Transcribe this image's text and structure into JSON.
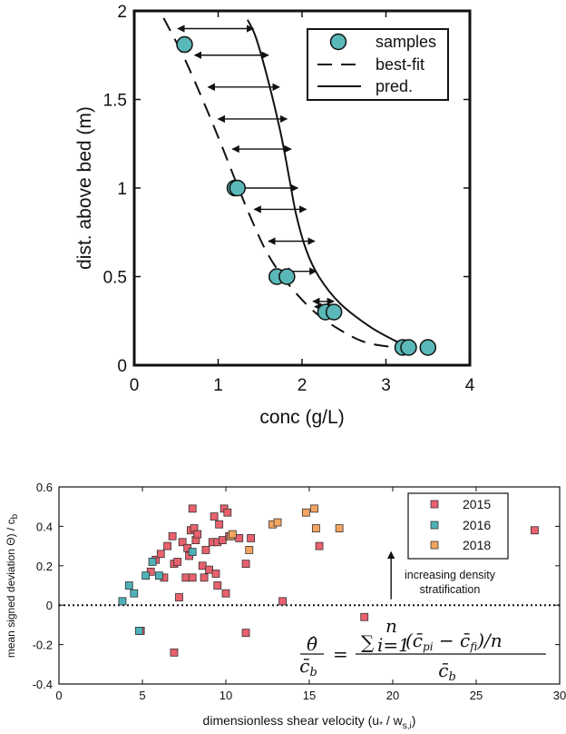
{
  "chart_data": [
    {
      "type": "scatter",
      "xlabel": "conc (g/L)",
      "ylabel": "dist. above bed (m)",
      "xlim": [
        0,
        4
      ],
      "ylim": [
        0,
        2
      ],
      "x_ticks": [
        "0",
        "1",
        "2",
        "3",
        "4"
      ],
      "y_ticks": [
        "0",
        "0.5",
        "1",
        "1.5",
        "2"
      ],
      "grid": false,
      "legend_position": "top-right",
      "legend": [
        "samples",
        "best-fit",
        "pred."
      ],
      "colors": {
        "samples": "#5ab8b8",
        "line": "#000000"
      },
      "series": [
        {
          "name": "samples",
          "points": [
            [
              0.6,
              1.81
            ],
            [
              1.2,
              1.0
            ],
            [
              1.23,
              1.0
            ],
            [
              1.7,
              0.5
            ],
            [
              1.82,
              0.5
            ],
            [
              2.28,
              0.3
            ],
            [
              2.38,
              0.3
            ],
            [
              3.2,
              0.1
            ],
            [
              3.27,
              0.1
            ],
            [
              3.5,
              0.1
            ]
          ]
        },
        {
          "name": "best-fit",
          "style": "dashed",
          "points": [
            [
              0.35,
              1.96
            ],
            [
              0.6,
              1.73
            ],
            [
              0.85,
              1.46
            ],
            [
              1.05,
              1.23
            ],
            [
              1.2,
              1.05
            ],
            [
              1.4,
              0.82
            ],
            [
              1.6,
              0.62
            ],
            [
              1.85,
              0.45
            ],
            [
              2.15,
              0.3
            ],
            [
              2.45,
              0.2
            ],
            [
              2.75,
              0.13
            ],
            [
              3.1,
              0.1
            ]
          ]
        },
        {
          "name": "pred.",
          "style": "solid",
          "points": [
            [
              1.35,
              1.95
            ],
            [
              1.45,
              1.85
            ],
            [
              1.6,
              1.6
            ],
            [
              1.75,
              1.3
            ],
            [
              1.85,
              1.05
            ],
            [
              1.93,
              0.85
            ],
            [
              2.05,
              0.65
            ],
            [
              2.2,
              0.5
            ],
            [
              2.45,
              0.35
            ],
            [
              2.8,
              0.22
            ],
            [
              3.1,
              0.14
            ],
            [
              3.3,
              0.1
            ]
          ]
        }
      ],
      "arrows": [
        {
          "y": 1.9,
          "x_from": 0.52,
          "x_to": 1.42
        },
        {
          "y": 1.75,
          "x_from": 0.72,
          "x_to": 1.6
        },
        {
          "y": 1.57,
          "x_from": 0.88,
          "x_to": 1.73
        },
        {
          "y": 1.39,
          "x_from": 1.0,
          "x_to": 1.82
        },
        {
          "y": 1.22,
          "x_from": 1.17,
          "x_to": 1.87
        },
        {
          "y": 1.0,
          "x_from": 1.22,
          "x_to": 1.95
        },
        {
          "y": 0.88,
          "x_from": 1.43,
          "x_to": 2.05
        },
        {
          "y": 0.7,
          "x_from": 1.6,
          "x_to": 2.15
        },
        {
          "y": 0.53,
          "x_from": 1.77,
          "x_to": 2.17
        },
        {
          "y": 0.36,
          "x_from": 2.13,
          "x_to": 2.38
        },
        {
          "y": 0.33,
          "x_from": 2.15,
          "x_to": 2.38
        }
      ]
    },
    {
      "type": "scatter",
      "xlabel": "dimensionless shear velocity (u",
      "xlabel_star": "*",
      "xlabel_mid": " / w",
      "xlabel_sub": "s,i",
      "xlabel_end": ")",
      "ylabel": "mean signed deviation  Θ) / c",
      "ylabel_sub": "b",
      "xlim": [
        0,
        30
      ],
      "ylim": [
        -0.4,
        0.6
      ],
      "x_ticks": [
        "0",
        "5",
        "10",
        "15",
        "20",
        "25",
        "30"
      ],
      "y_ticks": [
        "-0.4",
        "-0.2",
        "0",
        "0.2",
        "0.4",
        "0.6"
      ],
      "grid": false,
      "legend_position": "top-right",
      "legend": [
        "2015",
        "2016",
        "2018"
      ],
      "reference_line": {
        "y": 0,
        "style": "dotted"
      },
      "annotation": {
        "lines": [
          "increasing density",
          "stratification"
        ],
        "arrow_x": 19.9,
        "arrow_from_y": 0.03,
        "arrow_to_y": 0.27
      },
      "equation": {
        "lhs_top": "θ̂",
        "lhs_bottom": "c̄",
        "lhs_bottom_sub": "b",
        "equals": "=",
        "sum": "∑",
        "sum_top": "n",
        "sum_bottom": "i=1",
        "term_open": "(c̄",
        "term_sub1": "pi",
        "term_minus": " − c̄",
        "term_sub2": "fi",
        "term_close": ")/n",
        "rhs_bottom": "c̄",
        "rhs_bottom_sub": "b"
      },
      "series": [
        {
          "name": "2015",
          "color": "#e8616d",
          "points": [
            [
              5.5,
              0.17
            ],
            [
              5.8,
              0.23
            ],
            [
              6.1,
              0.26
            ],
            [
              6.3,
              0.14
            ],
            [
              6.5,
              0.3
            ],
            [
              6.8,
              0.35
            ],
            [
              6.9,
              0.21
            ],
            [
              7.1,
              0.22
            ],
            [
              7.2,
              0.04
            ],
            [
              7.4,
              0.32
            ],
            [
              7.6,
              0.14
            ],
            [
              7.7,
              0.29
            ],
            [
              7.8,
              0.25
            ],
            [
              7.9,
              0.38
            ],
            [
              8.0,
              0.49
            ],
            [
              8.0,
              0.14
            ],
            [
              8.1,
              0.39
            ],
            [
              8.2,
              0.33
            ],
            [
              8.3,
              0.36
            ],
            [
              8.6,
              0.2
            ],
            [
              8.7,
              0.14
            ],
            [
              8.8,
              0.28
            ],
            [
              9.0,
              0.18
            ],
            [
              9.2,
              0.32
            ],
            [
              9.3,
              0.45
            ],
            [
              9.4,
              0.16
            ],
            [
              9.5,
              0.32
            ],
            [
              9.6,
              0.41
            ],
            [
              9.8,
              0.33
            ],
            [
              9.9,
              0.49
            ],
            [
              10.1,
              0.47
            ],
            [
              10.2,
              0.35
            ],
            [
              10.0,
              0.06
            ],
            [
              10.8,
              0.34
            ],
            [
              11.5,
              0.34
            ],
            [
              11.2,
              0.21
            ],
            [
              9.5,
              0.1
            ],
            [
              13.4,
              0.02
            ],
            [
              15.6,
              0.3
            ],
            [
              28.5,
              0.38
            ],
            [
              4.9,
              -0.13
            ],
            [
              6.9,
              -0.24
            ],
            [
              11.2,
              -0.14
            ],
            [
              18.3,
              -0.06
            ]
          ]
        },
        {
          "name": "2016",
          "color": "#4fb1b8",
          "points": [
            [
              3.8,
              0.02
            ],
            [
              4.2,
              0.1
            ],
            [
              4.5,
              0.06
            ],
            [
              5.2,
              0.15
            ],
            [
              5.6,
              0.22
            ],
            [
              6.0,
              0.15
            ],
            [
              8.0,
              0.27
            ],
            [
              4.8,
              -0.13
            ]
          ]
        },
        {
          "name": "2018",
          "color": "#f4a460",
          "points": [
            [
              10.3,
              0.35
            ],
            [
              10.4,
              0.36
            ],
            [
              11.4,
              0.28
            ],
            [
              12.8,
              0.41
            ],
            [
              13.1,
              0.42
            ],
            [
              14.8,
              0.47
            ],
            [
              15.3,
              0.49
            ],
            [
              15.4,
              0.39
            ],
            [
              16.8,
              0.39
            ]
          ]
        }
      ]
    }
  ]
}
